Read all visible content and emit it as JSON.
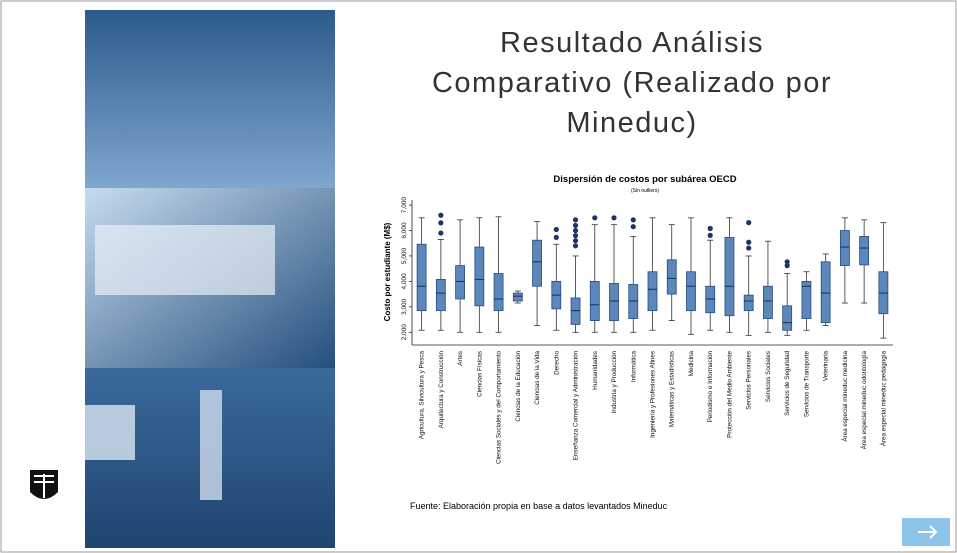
{
  "slide": {
    "title_lines": [
      "Resultado Análisis",
      "Comparativo (Realizado por",
      "Mineduc)"
    ],
    "source": "Fuente: Elaboración propia en base a datos levantados Mineduc"
  },
  "chart_data": {
    "type": "box",
    "title": "Dispersión de costos por subárea OECD",
    "subtitle": "(Sin outliers)",
    "y_label": "Costo por estudiante (M$)",
    "box_color": "#5b87bd",
    "flier_color": "#1d3565",
    "ylim": [
      1500,
      7200
    ],
    "yticks": [
      {
        "value": 2000,
        "label": "2,000"
      },
      {
        "value": 3000,
        "label": "3,000"
      },
      {
        "value": 4000,
        "label": "4,000"
      },
      {
        "value": 5000,
        "label": "5,000"
      },
      {
        "value": 6000,
        "label": "6,000"
      },
      {
        "value": 7000,
        "label": "7,000"
      }
    ],
    "categories": [
      "Agricultura, Silvicultura y Pesca",
      "Arquitectura y Construcción",
      "Artes",
      "Ciencias Físicas",
      "Ciencias Sociales y del Comportamiento",
      "Ciencias de la Educación",
      "Ciencias de la Vida",
      "Derecho",
      "Enseñanza Comercial y Administración",
      "Humanidades",
      "Industria y Producción",
      "Informática",
      "Ingeniería y Profesiones Afines",
      "Matemáticas y Estadísticas",
      "Medicina",
      "Periodismo e Información",
      "Protección del Medio Ambiente",
      "Servicios Personales",
      "Servicios Sociales",
      "Servicios de Seguridad",
      "Servicios de Transporte",
      "Veterinaria",
      "Área especial mineduc medicina",
      "Área especial mineduc odontología",
      "Área especial mineduc pedagogía"
    ],
    "whislo": [
      2080,
      2080,
      2000,
      2000,
      2000,
      3150,
      2270,
      2080,
      2000,
      2000,
      2000,
      2000,
      2080,
      2460,
      1920,
      2080,
      2000,
      1880,
      2000,
      1880,
      2080,
      2270,
      3150,
      3150,
      1770
    ],
    "q1": [
      2850,
      2850,
      3310,
      3040,
      2850,
      3230,
      3810,
      2920,
      2310,
      2460,
      2460,
      2540,
      2850,
      3500,
      2850,
      2770,
      2650,
      2850,
      2540,
      2080,
      2540,
      2380,
      4620,
      4650,
      2730
    ],
    "med": [
      3810,
      3540,
      4000,
      4080,
      3310,
      3420,
      4770,
      3460,
      2850,
      3080,
      3230,
      3230,
      3690,
      4120,
      3810,
      3310,
      3810,
      3230,
      3230,
      2380,
      3810,
      3540,
      5350,
      5310,
      3540
    ],
    "q3": [
      5460,
      4080,
      4620,
      5350,
      4310,
      3540,
      5620,
      4000,
      3350,
      4000,
      3920,
      3880,
      4380,
      4850,
      4380,
      3810,
      5730,
      3460,
      3810,
      3040,
      4000,
      4770,
      6000,
      5770,
      4380
    ],
    "whishi": [
      6500,
      5650,
      6420,
      6500,
      6540,
      3620,
      6350,
      5460,
      5000,
      6230,
      6230,
      5770,
      6500,
      6230,
      6500,
      5620,
      6500,
      5000,
      5580,
      4310,
      4380,
      5080,
      6500,
      6420,
      6310
    ],
    "fliers": [
      [],
      [
        6600,
        6300,
        5900
      ],
      [],
      [],
      [],
      [],
      [],
      [
        6040,
        5730
      ],
      [
        6420,
        6200,
        6000,
        5800,
        5600,
        5400
      ],
      [
        6500
      ],
      [
        6500
      ],
      [
        6420,
        6150
      ],
      [],
      [],
      [],
      [
        6080,
        5810
      ],
      [],
      [
        6310,
        5540,
        5310
      ],
      [],
      [
        4770,
        4620
      ],
      [],
      [],
      [],
      [],
      []
    ]
  }
}
